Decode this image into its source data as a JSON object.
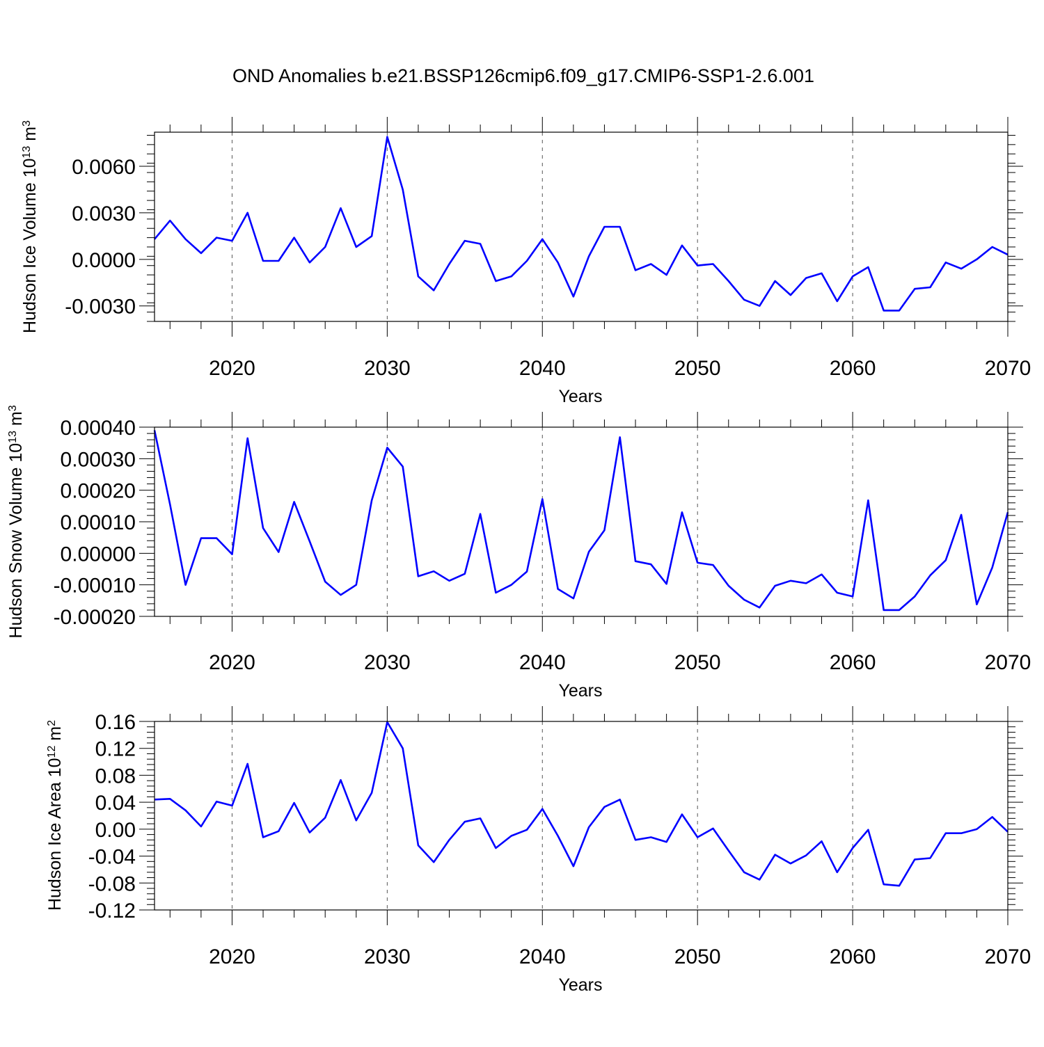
{
  "chart_data": [
    {
      "type": "line",
      "title": "OND Anomalies b.e21.BSSP126cmip6.f09_g17.CMIP6-SSP1-2.6.001",
      "ylabel": "Hudson Ice Volume 10",
      "ylabel_exp": "13",
      "ylabel_unit": " m",
      "ylabel_unit_exp": "3",
      "xlabel": "Years",
      "xlim": [
        2015,
        2070
      ],
      "ylim": [
        -0.004,
        0.0082
      ],
      "yticks": [
        -0.003,
        0.0,
        0.003,
        0.006
      ],
      "ytick_labels": [
        "-0.0030",
        "0.0000",
        "0.0030",
        "0.0060"
      ],
      "xticks": [
        2020,
        2030,
        2040,
        2050,
        2060,
        2070
      ],
      "xtick_labels": [
        "2020",
        "2030",
        "2040",
        "2050",
        "2060",
        "2070"
      ],
      "x": [
        2015,
        2016,
        2017,
        2018,
        2019,
        2020,
        2021,
        2022,
        2023,
        2024,
        2025,
        2026,
        2027,
        2028,
        2029,
        2030,
        2031,
        2032,
        2033,
        2034,
        2035,
        2036,
        2037,
        2038,
        2039,
        2040,
        2041,
        2042,
        2043,
        2044,
        2045,
        2046,
        2047,
        2048,
        2049,
        2050,
        2051,
        2052,
        2053,
        2054,
        2055,
        2056,
        2057,
        2058,
        2059,
        2060,
        2061,
        2062,
        2063,
        2064,
        2065,
        2066,
        2067,
        2068,
        2069,
        2070
      ],
      "series": [
        {
          "name": "Hudson Ice Volume",
          "color": "#0000ff",
          "values": [
            0.0013,
            0.0025,
            0.0013,
            0.0004,
            0.0014,
            0.0012,
            0.003,
            -0.0001,
            -0.0001,
            0.0014,
            -0.0002,
            0.0008,
            0.0033,
            0.0008,
            0.0015,
            0.0079,
            0.0045,
            -0.0011,
            -0.002,
            -0.0003,
            0.0012,
            0.001,
            -0.0014,
            -0.0011,
            -0.0001,
            0.0013,
            -0.0002,
            -0.0024,
            0.0002,
            0.0021,
            0.0021,
            -0.0007,
            -0.0003,
            -0.001,
            0.0009,
            -0.0004,
            -0.0003,
            -0.0014,
            -0.0026,
            -0.003,
            -0.0014,
            -0.0023,
            -0.0012,
            -0.0009,
            -0.0027,
            -0.0011,
            -0.0005,
            -0.0033,
            -0.0033,
            -0.0019,
            -0.0018,
            -0.0002,
            -0.0006,
            0.0,
            0.0008,
            0.0003
          ]
        }
      ]
    },
    {
      "type": "line",
      "ylabel": "Hudson Snow Volume 10",
      "ylabel_exp": "13",
      "ylabel_unit": " m",
      "ylabel_unit_exp": "3",
      "xlabel": "Years",
      "xlim": [
        2015,
        2070
      ],
      "ylim": [
        -0.0002,
        0.0004
      ],
      "yticks": [
        -0.0002,
        -0.0001,
        0.0,
        0.0001,
        0.0002,
        0.0003,
        0.0004
      ],
      "ytick_labels": [
        "-0.00020",
        "-0.00010",
        "0.00000",
        "0.00010",
        "0.00020",
        "0.00030",
        "0.00040"
      ],
      "xticks": [
        2020,
        2030,
        2040,
        2050,
        2060,
        2070
      ],
      "xtick_labels": [
        "2020",
        "2030",
        "2040",
        "2050",
        "2060",
        "2070"
      ],
      "x": [
        2015,
        2016,
        2017,
        2018,
        2019,
        2020,
        2021,
        2022,
        2023,
        2024,
        2025,
        2026,
        2027,
        2028,
        2029,
        2030,
        2031,
        2032,
        2033,
        2034,
        2035,
        2036,
        2037,
        2038,
        2039,
        2040,
        2041,
        2042,
        2043,
        2044,
        2045,
        2046,
        2047,
        2048,
        2049,
        2050,
        2051,
        2052,
        2053,
        2054,
        2055,
        2056,
        2057,
        2058,
        2059,
        2060,
        2061,
        2062,
        2063,
        2064,
        2065,
        2066,
        2067,
        2068,
        2069,
        2070
      ],
      "series": [
        {
          "name": "Hudson Snow Volume",
          "color": "#0000ff",
          "values": [
            0.00039,
            0.000155,
            -0.0001,
            4.8e-05,
            4.8e-05,
            -3e-06,
            0.000365,
            8e-05,
            4e-06,
            0.000163,
            3.8e-05,
            -9e-05,
            -0.000132,
            -0.0001,
            0.000168,
            0.000335,
            0.000275,
            -7.3e-05,
            -5.7e-05,
            -8.7e-05,
            -6.5e-05,
            0.000125,
            -0.000125,
            -0.0001,
            -5.8e-05,
            0.000172,
            -0.000113,
            -0.000143,
            5e-06,
            7.3e-05,
            0.000368,
            -2.5e-05,
            -3.5e-05,
            -9.7e-05,
            0.00013,
            -3e-05,
            -3.7e-05,
            -0.000103,
            -0.000147,
            -0.000172,
            -0.000103,
            -8.7e-05,
            -9.5e-05,
            -6.7e-05,
            -0.000125,
            -0.000137,
            0.000168,
            -0.00018,
            -0.00018,
            -0.000137,
            -7e-05,
            -2.2e-05,
            0.000122,
            -0.000162,
            -4.5e-05,
            0.00013
          ]
        }
      ]
    },
    {
      "type": "line",
      "ylabel": "Hudson Ice Area 10",
      "ylabel_exp": "12",
      "ylabel_unit": " m",
      "ylabel_unit_exp": "2",
      "xlabel": "Years",
      "xlim": [
        2015,
        2070
      ],
      "ylim": [
        -0.12,
        0.16
      ],
      "yticks": [
        -0.12,
        -0.08,
        -0.04,
        0.0,
        0.04,
        0.08,
        0.12,
        0.16
      ],
      "ytick_labels": [
        "-0.12",
        "-0.08",
        "-0.04",
        "0.00",
        "0.04",
        "0.08",
        "0.12",
        "0.16"
      ],
      "xticks": [
        2020,
        2030,
        2040,
        2050,
        2060,
        2070
      ],
      "xtick_labels": [
        "2020",
        "2030",
        "2040",
        "2050",
        "2060",
        "2070"
      ],
      "x": [
        2015,
        2016,
        2017,
        2018,
        2019,
        2020,
        2021,
        2022,
        2023,
        2024,
        2025,
        2026,
        2027,
        2028,
        2029,
        2030,
        2031,
        2032,
        2033,
        2034,
        2035,
        2036,
        2037,
        2038,
        2039,
        2040,
        2041,
        2042,
        2043,
        2044,
        2045,
        2046,
        2047,
        2048,
        2049,
        2050,
        2051,
        2052,
        2053,
        2054,
        2055,
        2056,
        2057,
        2058,
        2059,
        2060,
        2061,
        2062,
        2063,
        2064,
        2065,
        2066,
        2067,
        2068,
        2069,
        2070
      ],
      "series": [
        {
          "name": "Hudson Ice Area",
          "color": "#0000ff",
          "values": [
            0.044,
            0.045,
            0.028,
            0.004,
            0.041,
            0.035,
            0.097,
            -0.012,
            -0.003,
            0.039,
            -0.005,
            0.017,
            0.073,
            0.013,
            0.054,
            0.159,
            0.12,
            -0.024,
            -0.049,
            -0.016,
            0.011,
            0.016,
            -0.028,
            -0.01,
            -0.001,
            0.03,
            -0.01,
            -0.055,
            0.003,
            0.033,
            0.044,
            -0.016,
            -0.012,
            -0.019,
            0.022,
            -0.012,
            0.001,
            -0.032,
            -0.064,
            -0.075,
            -0.038,
            -0.051,
            -0.039,
            -0.018,
            -0.064,
            -0.028,
            -0.001,
            -0.082,
            -0.084,
            -0.045,
            -0.043,
            -0.006,
            -0.006,
            0.0,
            0.018,
            -0.004
          ]
        }
      ]
    }
  ]
}
